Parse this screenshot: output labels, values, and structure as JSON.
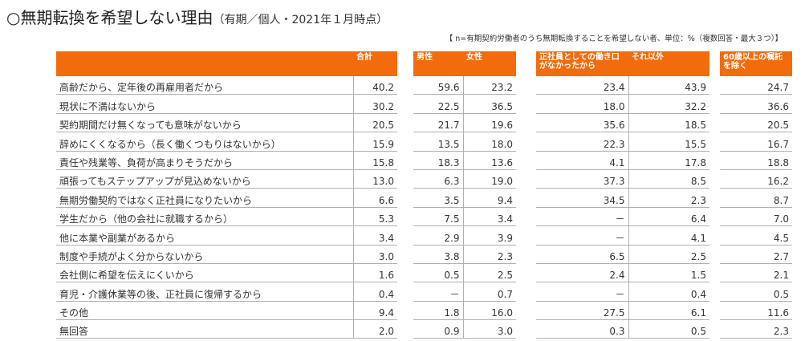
{
  "title": "○無期転換を希望しない理由",
  "subtitle": "（有期／個人・2021年１月時点）",
  "note": "【 n=有期契約労働者のうち無期転換することを希望しない者、単位：%（複数回答・最大３つ）】",
  "headers": {
    "total": "合計",
    "male": "男性",
    "female": "女性",
    "no_regular": "正社員としての働き口がなかったから",
    "other": "それ以外",
    "excl_over60": "60歳以上の嘱託を除く"
  },
  "rows": [
    {
      "label": "高齢だから、定年後の再雇用者だから",
      "total": "40.2",
      "male": "59.6",
      "female": "23.2",
      "no_regular": "23.4",
      "other": "43.9",
      "excl_over60": "24.7"
    },
    {
      "label": "現状に不満はないから",
      "total": "30.2",
      "male": "22.5",
      "female": "36.5",
      "no_regular": "18.0",
      "other": "32.2",
      "excl_over60": "36.6"
    },
    {
      "label": "契約期間だけ無くなっても意味がないから",
      "total": "20.5",
      "male": "21.7",
      "female": "19.6",
      "no_regular": "35.6",
      "other": "18.5",
      "excl_over60": "20.5"
    },
    {
      "label": "辞めにくくなるから（長く働くつもりはないから）",
      "total": "15.9",
      "male": "13.5",
      "female": "18.0",
      "no_regular": "22.3",
      "other": "15.5",
      "excl_over60": "16.7"
    },
    {
      "label": "責任や残業等、負荷が高まりそうだから",
      "total": "15.8",
      "male": "18.3",
      "female": "13.6",
      "no_regular": "4.1",
      "other": "17.8",
      "excl_over60": "18.8"
    },
    {
      "label": "頑張ってもステップアップが見込めないから",
      "total": "13.0",
      "male": "6.3",
      "female": "19.0",
      "no_regular": "37.3",
      "other": "8.5",
      "excl_over60": "16.2"
    },
    {
      "label": "無期労働契約ではなく正社員になりたいから",
      "total": "6.6",
      "male": "3.5",
      "female": "9.4",
      "no_regular": "34.5",
      "other": "2.3",
      "excl_over60": "8.7"
    },
    {
      "label": "学生だから（他の会社に就職するから）",
      "total": "5.3",
      "male": "7.5",
      "female": "3.4",
      "no_regular": "－",
      "other": "6.4",
      "excl_over60": "7.0"
    },
    {
      "label": "他に本業や副業があるから",
      "total": "3.4",
      "male": "2.9",
      "female": "3.9",
      "no_regular": "－",
      "other": "4.1",
      "excl_over60": "4.5"
    },
    {
      "label": "制度や手続がよく分からないから",
      "total": "3.0",
      "male": "3.8",
      "female": "2.3",
      "no_regular": "6.5",
      "other": "2.5",
      "excl_over60": "2.7"
    },
    {
      "label": "会社側に希望を伝えにくいから",
      "total": "1.6",
      "male": "0.5",
      "female": "2.5",
      "no_regular": "2.4",
      "other": "1.5",
      "excl_over60": "2.1"
    },
    {
      "label": "育児・介護休業等の後、正社員に復帰するから",
      "total": "0.4",
      "male": "－",
      "female": "0.7",
      "no_regular": "－",
      "other": "0.4",
      "excl_over60": "0.5"
    },
    {
      "label": "その他",
      "total": "9.4",
      "male": "1.8",
      "female": "16.0",
      "no_regular": "27.5",
      "other": "6.1",
      "excl_over60": "11.6"
    },
    {
      "label": "無回答",
      "total": "2.0",
      "male": "0.9",
      "female": "3.0",
      "no_regular": "0.3",
      "other": "0.5",
      "excl_over60": "2.3"
    }
  ]
}
